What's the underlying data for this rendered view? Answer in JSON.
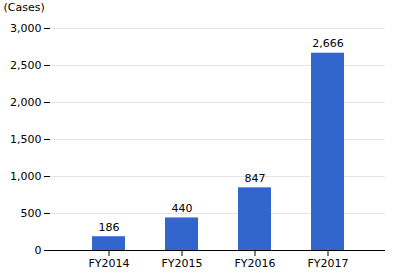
{
  "chart_data": {
    "type": "bar",
    "categories": [
      "FY2014",
      "FY2015",
      "FY2016",
      "FY2017"
    ],
    "values": [
      186,
      440,
      847,
      2666
    ],
    "value_labels": [
      "186",
      "440",
      "847",
      "2,666"
    ],
    "data_labels": true,
    "color": "#3366CC",
    "ylabel": "(Cases)",
    "ylim": [
      0,
      3000
    ],
    "yticks": [
      0,
      500,
      {
        "value": 1000,
        "label": "1,000"
      },
      {
        "value": 1500,
        "label": "1,500"
      },
      {
        "value": 2000,
        "label": "2,000"
      },
      {
        "value": 2500,
        "label": "2,500"
      },
      {
        "value": 3000,
        "label": "3,000"
      }
    ],
    "grid": true
  }
}
